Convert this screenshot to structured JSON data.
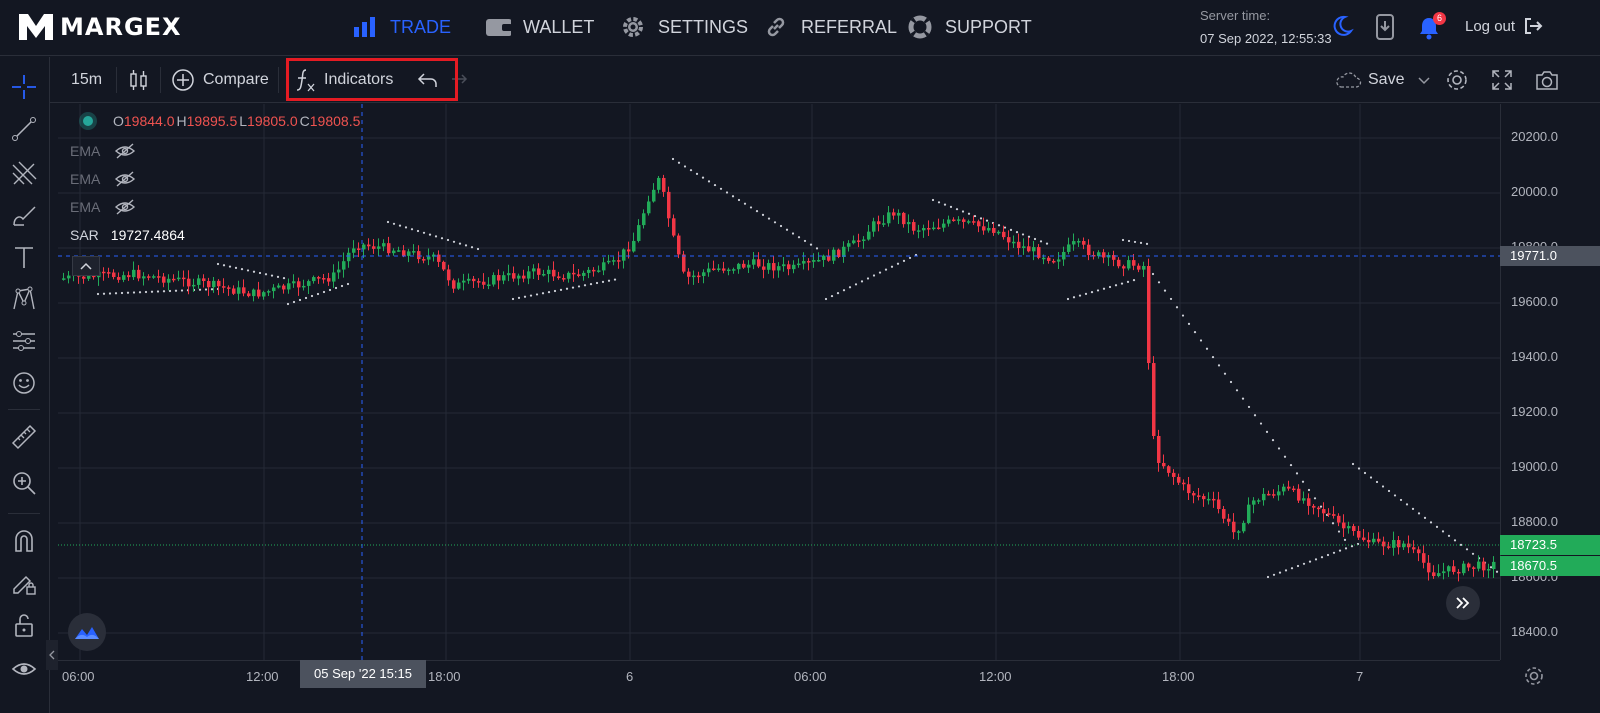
{
  "brand": {
    "name": "MARGEX"
  },
  "nav": [
    {
      "label": "TRADE",
      "icon": "bar-chart-icon",
      "active": true
    },
    {
      "label": "WALLET",
      "icon": "wallet-icon"
    },
    {
      "label": "SETTINGS",
      "icon": "gear-icon"
    },
    {
      "label": "REFERRAL",
      "icon": "link-icon"
    },
    {
      "label": "SUPPORT",
      "icon": "lifebuoy-icon"
    }
  ],
  "server": {
    "label": "Server time:",
    "time": "07 Sep 2022, 12:55:33"
  },
  "notifications": {
    "count": "6"
  },
  "logout_label": "Log out",
  "toolbar": {
    "interval": "15m",
    "compare_label": "Compare",
    "indicators_label": "Indicators",
    "save_label": "Save"
  },
  "legend": {
    "ohlc": {
      "o_key": "O",
      "o": "19844.0",
      "h_key": "H",
      "h": "19895.5",
      "l_key": "L",
      "l": "19805.0",
      "c_key": "C",
      "c": "19808.5"
    },
    "ema": [
      "EMA",
      "EMA",
      "EMA"
    ],
    "sar_label": "SAR",
    "sar_value": "19727.4864"
  },
  "price_axis": [
    "20200.0",
    "20000.0",
    "19800.0",
    "19600.0",
    "19400.0",
    "19200.0",
    "19000.0",
    "18800.0",
    "18600.0",
    "18400.0"
  ],
  "price_tags": {
    "crosshair": "19771.0",
    "last": "18723.5",
    "close": "18670.5"
  },
  "time_axis": [
    "06:00",
    "12:00",
    "18:00",
    "6",
    "06:00",
    "12:00",
    "18:00",
    "7"
  ],
  "crosshair_time": "05 Sep '22   15:15",
  "colors": {
    "up": "#26a69a",
    "up_candle": "#22ab59",
    "down": "#f23645",
    "accent": "#2962ff",
    "highlight": "#e41b23"
  }
}
